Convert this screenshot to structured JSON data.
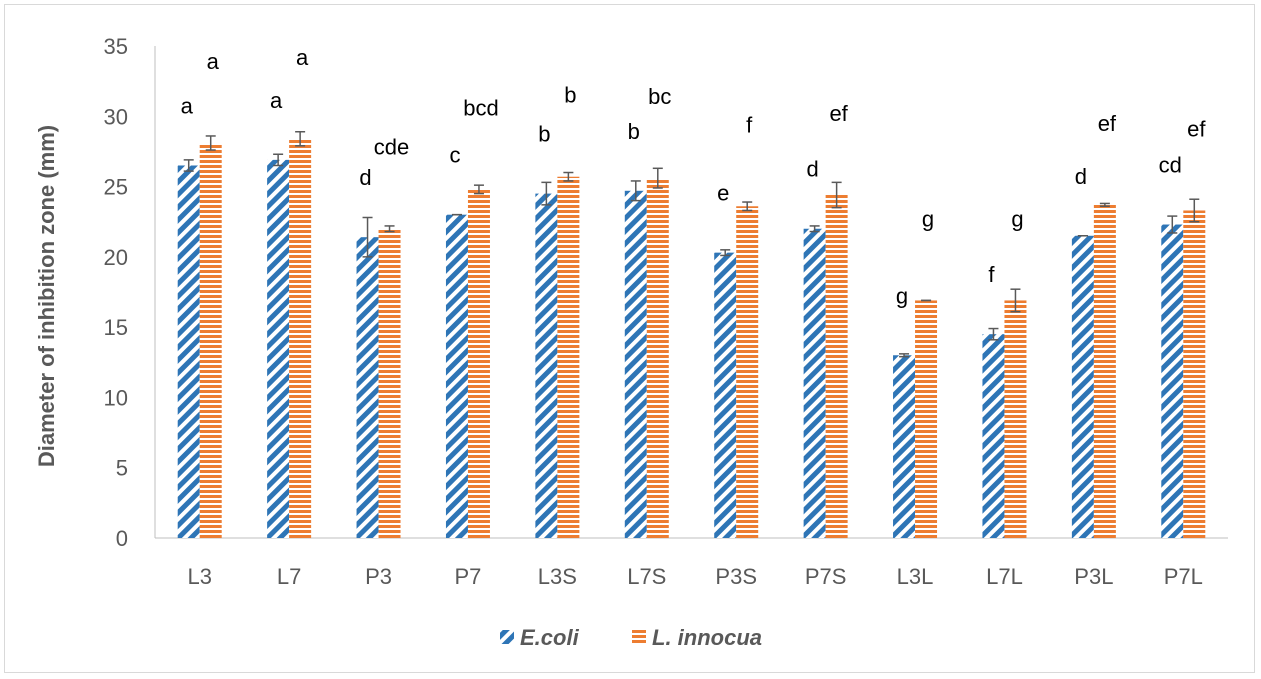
{
  "chart_data": {
    "type": "bar",
    "ylabel": "Diameter of inhibition zone (mm)",
    "xlabel": "",
    "ylim": [
      0,
      35
    ],
    "yticks": [
      0,
      5,
      10,
      15,
      20,
      25,
      30,
      35
    ],
    "grid": false,
    "legend_position": "bottom",
    "categories": [
      "L3",
      "L7",
      "P3",
      "P7",
      "L3S",
      "L7S",
      "P3S",
      "P7S",
      "L3L",
      "L7L",
      "P3L",
      "P7L"
    ],
    "series": [
      {
        "name": "E.coli",
        "color": "#2E75B6",
        "pattern": "diagonal-stripes",
        "values": [
          26.5,
          26.9,
          21.4,
          23.0,
          24.5,
          24.7,
          20.3,
          22.0,
          13.0,
          14.5,
          21.5,
          22.3
        ],
        "errors": [
          0.4,
          0.4,
          1.4,
          0.0,
          0.8,
          0.7,
          0.2,
          0.2,
          0.1,
          0.4,
          0.0,
          0.6
        ],
        "labels": [
          "a",
          "a",
          "d",
          "c",
          "b",
          "b",
          "e",
          "d",
          "g",
          "f",
          "d",
          "cd"
        ]
      },
      {
        "name": "L. innocua",
        "color": "#ED7D31",
        "pattern": "horizontal-stripes",
        "values": [
          28.1,
          28.4,
          22.0,
          24.8,
          25.7,
          25.6,
          23.6,
          24.4,
          16.9,
          16.9,
          23.7,
          23.3
        ],
        "errors": [
          0.5,
          0.5,
          0.2,
          0.3,
          0.3,
          0.7,
          0.3,
          0.9,
          0.0,
          0.8,
          0.1,
          0.8
        ],
        "labels": [
          "a",
          "a",
          "cde",
          "bcd",
          "b",
          "bc",
          "f",
          "ef",
          "g",
          "g",
          "ef",
          "ef"
        ]
      }
    ]
  }
}
